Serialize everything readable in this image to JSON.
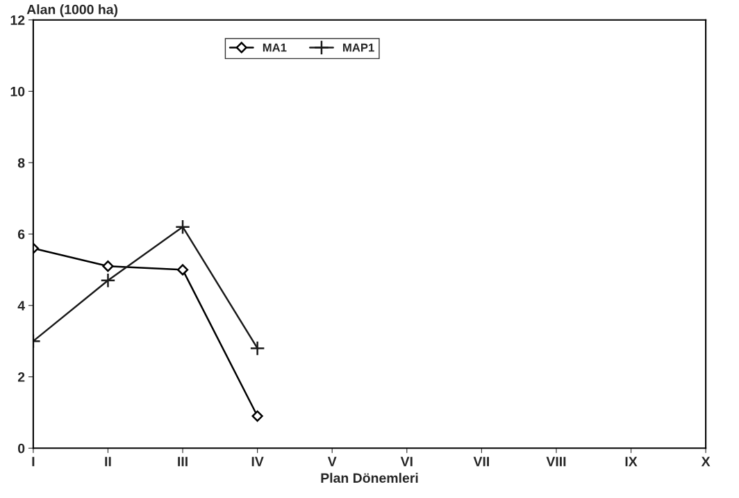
{
  "chart_data": {
    "type": "line",
    "ylabel": "Alan (1000 ha)",
    "xlabel": "Plan Dönemleri",
    "categories": [
      "I",
      "II",
      "III",
      "IV",
      "V",
      "VI",
      "VII",
      "VIII",
      "IX",
      "X"
    ],
    "series": [
      {
        "name": "MA1",
        "color": "#000000",
        "marker": "diamond",
        "values": [
          5.6,
          5.1,
          5.0,
          0.9,
          null,
          null,
          null,
          null,
          null,
          null
        ]
      },
      {
        "name": "MAP1",
        "color": "#1a1a1a",
        "marker": "cross",
        "values": [
          3.0,
          4.7,
          6.2,
          2.8,
          null,
          null,
          null,
          null,
          null,
          null
        ]
      }
    ],
    "ylim": [
      0,
      12
    ],
    "yticks": [
      0,
      2,
      4,
      6,
      8,
      10,
      12
    ],
    "grid": false,
    "legend": "top",
    "line_style": "solid"
  }
}
